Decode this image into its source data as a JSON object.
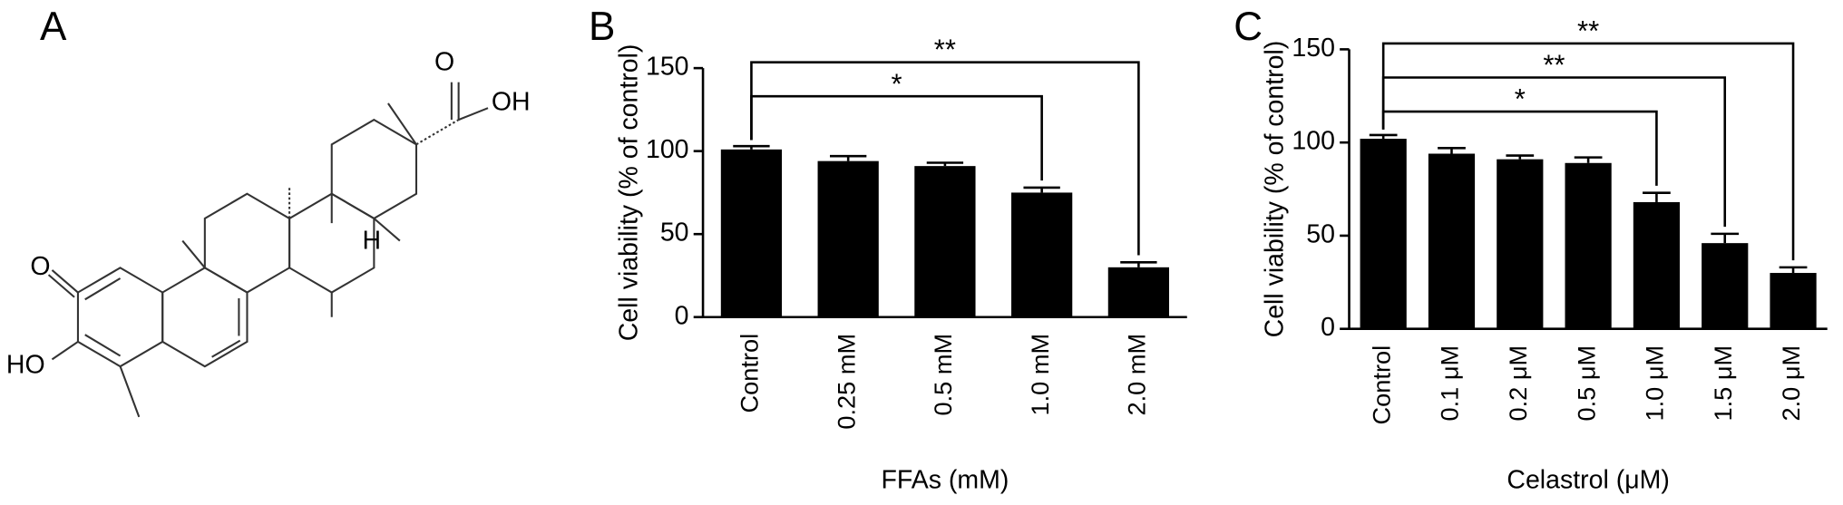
{
  "structure": {
    "panel_label": "A",
    "atom_labels": [
      "O",
      "OH",
      "O",
      "HO",
      "H"
    ]
  },
  "chart_data": [
    {
      "type": "bar",
      "panel_label": "B",
      "x_label": "FFAs (mM)",
      "y_label": "Cell viability (% of control)",
      "categories": [
        "Control",
        "0.25 mM",
        "0.5 mM",
        "1.0 mM",
        "2.0 mM"
      ],
      "values": [
        101,
        94,
        91,
        75,
        30
      ],
      "errors": [
        2,
        3,
        2,
        3,
        3
      ],
      "color": "#000000",
      "ylim": [
        0,
        150
      ],
      "yticks": [
        0,
        50,
        100,
        150
      ],
      "annotations": [
        {
          "text": "**",
          "between": [
            "Control",
            "2.0 mM"
          ]
        },
        {
          "text": "*",
          "between": [
            "Control",
            "1.0 mM"
          ]
        }
      ]
    },
    {
      "type": "bar",
      "panel_label": "C",
      "x_label": "Celastrol (μM)",
      "y_label": "Cell viability (% of control)",
      "categories": [
        "Control",
        "0.1 μM",
        "0.2 μM",
        "0.5 μM",
        "1.0 μM",
        "1.5 μM",
        "2.0 μM"
      ],
      "values": [
        102,
        94,
        91,
        89,
        68,
        46,
        30
      ],
      "errors": [
        2,
        3,
        2,
        3,
        5,
        5,
        3
      ],
      "color": "#000000",
      "ylim": [
        0,
        150
      ],
      "yticks": [
        0,
        50,
        100,
        150
      ],
      "annotations": [
        {
          "text": "**",
          "between": [
            "Control",
            "2.0 μM"
          ]
        },
        {
          "text": "**",
          "between": [
            "Control",
            "1.5 μM"
          ]
        },
        {
          "text": "*",
          "between": [
            "Control",
            "1.0 μM"
          ]
        }
      ]
    }
  ]
}
